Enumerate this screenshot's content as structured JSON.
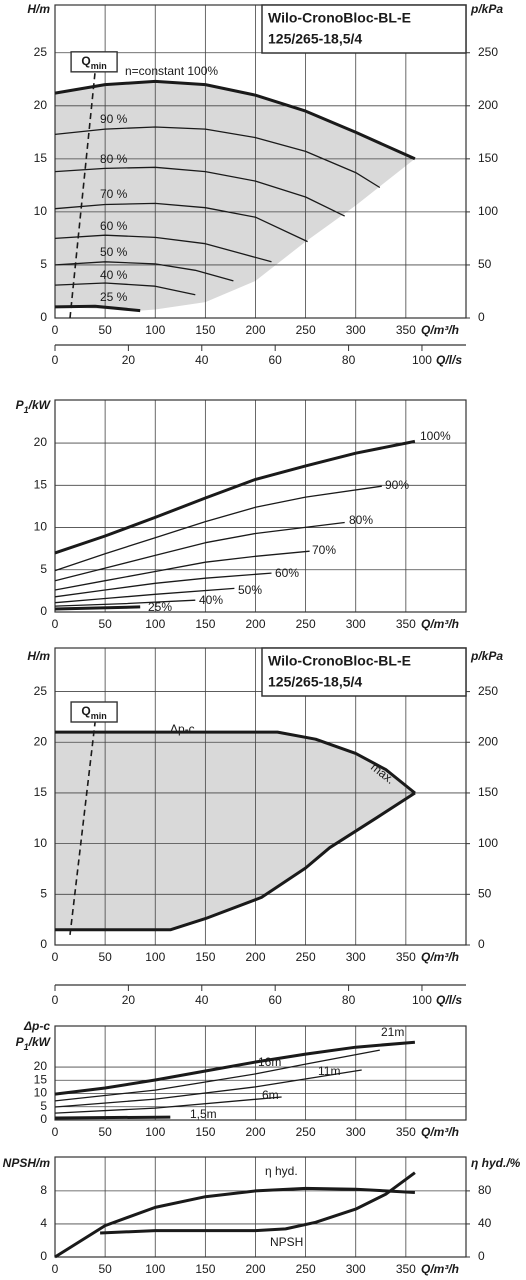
{
  "chart_data": [
    {
      "type": "line",
      "title": "Wilo-CronoBloc-BL-E",
      "subtitle": "125/265-18,5/4",
      "y_label": "H/m",
      "y2_label": "p/kPa",
      "x_label": "Q/m³/h",
      "x2_label": "Q/l/s",
      "xlim": [
        0,
        410
      ],
      "xticks": [
        0,
        50,
        100,
        150,
        200,
        250,
        300,
        350
      ],
      "ylim": [
        0,
        29.5
      ],
      "yticks": [
        0,
        5,
        10,
        15,
        20,
        25
      ],
      "y2lim": [
        0,
        295
      ],
      "y2ticks": [
        0,
        50,
        100,
        150,
        200,
        250
      ],
      "x2lim": [
        0,
        112
      ],
      "x2ticks": [
        0,
        20,
        40,
        60,
        80,
        100
      ],
      "grid": true,
      "color": "#1a1a1a",
      "region": {
        "color": "#d9d9d9",
        "x": [
          0,
          50,
          100,
          150,
          200,
          250,
          300,
          359,
          300,
          250,
          200,
          150,
          100,
          85,
          0
        ],
        "values": [
          21.2,
          22.0,
          22.3,
          22.0,
          21.0,
          19.5,
          17.5,
          15.0,
          10.6,
          7.2,
          3.5,
          1.5,
          0.8,
          0.7,
          1.05
        ]
      },
      "qmin": {
        "label": {
          "main": "Q",
          "sub": "min"
        },
        "x": [
          15,
          40
        ],
        "values": [
          0,
          23.2
        ]
      },
      "annotations": [
        "n=constant 100%"
      ],
      "series": [
        {
          "x": [
            0,
            50,
            100,
            150,
            200,
            250,
            300,
            359
          ],
          "values": [
            21.2,
            22.0,
            22.3,
            22.0,
            21.0,
            19.5,
            17.5,
            15.0
          ]
        },
        {
          "name": "90 %",
          "x": [
            0,
            50,
            100,
            150,
            200,
            250,
            300,
            324
          ],
          "values": [
            17.3,
            17.8,
            18.0,
            17.8,
            17.0,
            15.7,
            13.7,
            12.3
          ]
        },
        {
          "name": "80 %",
          "x": [
            0,
            50,
            100,
            150,
            200,
            250,
            289
          ],
          "values": [
            13.8,
            14.1,
            14.2,
            13.8,
            12.9,
            11.4,
            9.6
          ]
        },
        {
          "name": "70 %",
          "x": [
            0,
            50,
            100,
            150,
            200,
            252
          ],
          "values": [
            10.3,
            10.7,
            10.8,
            10.4,
            9.5,
            7.2
          ]
        },
        {
          "name": "60 %",
          "x": [
            0,
            50,
            100,
            150,
            216
          ],
          "values": [
            7.5,
            7.8,
            7.6,
            7.0,
            5.3
          ]
        },
        {
          "name": "50 %",
          "x": [
            0,
            50,
            100,
            140,
            178
          ],
          "values": [
            5.0,
            5.3,
            5.1,
            4.5,
            3.5
          ]
        },
        {
          "name": "40 %",
          "x": [
            0,
            50,
            100,
            140
          ],
          "values": [
            3.1,
            3.3,
            3.0,
            2.2
          ]
        },
        {
          "name": "25 %",
          "x": [
            0,
            40,
            85
          ],
          "values": [
            1.05,
            1.1,
            0.7
          ]
        }
      ]
    },
    {
      "type": "line",
      "y_label": {
        "main": "P",
        "sub": "1",
        "rest": "/kW"
      },
      "x_label": "Q/m³/h",
      "xlim": [
        0,
        410
      ],
      "xticks": [
        0,
        50,
        100,
        150,
        200,
        250,
        300,
        350
      ],
      "ylim": [
        0,
        25.1
      ],
      "yticks": [
        0,
        5,
        10,
        15,
        20
      ],
      "grid": true,
      "color": "#1a1a1a",
      "series": [
        {
          "name": "100%",
          "x": [
            0,
            50,
            100,
            150,
            200,
            250,
            300,
            359
          ],
          "values": [
            7.0,
            9.0,
            11.2,
            13.5,
            15.7,
            17.3,
            18.8,
            20.2
          ]
        },
        {
          "name": "90%",
          "x": [
            0,
            50,
            100,
            150,
            200,
            250,
            326
          ],
          "values": [
            4.9,
            6.9,
            8.8,
            10.7,
            12.4,
            13.6,
            14.9
          ]
        },
        {
          "name": "80%",
          "x": [
            0,
            50,
            100,
            150,
            200,
            289
          ],
          "values": [
            3.7,
            5.2,
            6.7,
            8.2,
            9.3,
            10.6
          ]
        },
        {
          "name": "70%",
          "x": [
            0,
            50,
            100,
            150,
            200,
            254
          ],
          "values": [
            2.6,
            3.7,
            4.8,
            5.9,
            6.6,
            7.2
          ]
        },
        {
          "name": "60%",
          "x": [
            0,
            50,
            100,
            150,
            216
          ],
          "values": [
            1.8,
            2.6,
            3.4,
            4.0,
            4.6
          ]
        },
        {
          "name": "50%",
          "x": [
            0,
            50,
            100,
            179
          ],
          "values": [
            1.1,
            1.6,
            2.1,
            2.8
          ]
        },
        {
          "name": "40%",
          "x": [
            0,
            70,
            140
          ],
          "values": [
            0.7,
            1.0,
            1.4
          ]
        },
        {
          "name": "25%",
          "x": [
            0,
            85
          ],
          "values": [
            0.35,
            0.6
          ]
        }
      ]
    },
    {
      "type": "line",
      "title": "Wilo-CronoBloc-BL-E",
      "subtitle": "125/265-18,5/4",
      "y_label": "H/m",
      "y2_label": "p/kPa",
      "x_label": "Q/m³/h",
      "x2_label": "Q/l/s",
      "xlim": [
        0,
        410
      ],
      "xticks": [
        0,
        50,
        100,
        150,
        200,
        250,
        300,
        350
      ],
      "ylim": [
        0,
        29.3
      ],
      "yticks": [
        0,
        5,
        10,
        15,
        20,
        25
      ],
      "y2lim": [
        0,
        293
      ],
      "y2ticks": [
        0,
        50,
        100,
        150,
        200,
        250
      ],
      "x2lim": [
        0,
        112
      ],
      "x2ticks": [
        0,
        20,
        40,
        60,
        80,
        100
      ],
      "grid": true,
      "color": "#1a1a1a",
      "fill_between": "#d9d9d9",
      "qmin": {
        "label": {
          "main": "Q",
          "sub": "min"
        },
        "x": [
          15,
          40
        ],
        "values": [
          1.0,
          22.0
        ]
      },
      "annotations": [
        "max."
      ],
      "series": [
        {
          "name": "Δp-c",
          "x": [
            0,
            222,
            260,
            300,
            330,
            359
          ],
          "values": [
            21.0,
            21.0,
            20.3,
            18.9,
            17.3,
            15.0
          ]
        },
        {
          "x": [
            0,
            115,
            150,
            206,
            250,
            274,
            320,
            359
          ],
          "values": [
            1.5,
            1.5,
            2.6,
            4.7,
            7.6,
            9.6,
            12.5,
            15.0
          ]
        }
      ]
    },
    {
      "type": "line",
      "y_label_top": "Δp-c",
      "y_label": {
        "main": "P",
        "sub": "1",
        "rest": "/kW"
      },
      "x_label": "Q/m³/h",
      "xlim": [
        0,
        410
      ],
      "xticks": [
        0,
        50,
        100,
        150,
        200,
        250,
        300,
        350
      ],
      "ylim": [
        0,
        35.5
      ],
      "yticks": [
        0,
        5,
        10,
        15,
        20
      ],
      "grid": true,
      "color": "#1a1a1a",
      "series": [
        {
          "name": "21m",
          "x": [
            0,
            50,
            100,
            150,
            200,
            250,
            300,
            359
          ],
          "values": [
            9.8,
            12.1,
            15.1,
            18.5,
            21.9,
            24.9,
            27.5,
            29.4
          ]
        },
        {
          "name": "16m",
          "x": [
            0,
            100,
            200,
            250,
            324
          ],
          "values": [
            7.2,
            11.3,
            17.4,
            21.1,
            26.4
          ]
        },
        {
          "name": "11m",
          "x": [
            0,
            100,
            200,
            306
          ],
          "values": [
            4.9,
            7.9,
            12.5,
            18.9
          ]
        },
        {
          "name": "6m",
          "x": [
            0,
            100,
            226
          ],
          "values": [
            2.6,
            4.5,
            8.7
          ]
        },
        {
          "name": "1,5m",
          "x": [
            0,
            115
          ],
          "values": [
            0.75,
            1.1
          ]
        }
      ]
    },
    {
      "type": "line",
      "y_label": "NPSH/m",
      "y2_label": "η hyd./%",
      "x_label": "Q/m³/h",
      "xlim": [
        0,
        410
      ],
      "xticks": [
        0,
        50,
        100,
        150,
        200,
        250,
        300,
        350
      ],
      "ylim": [
        0,
        12.1
      ],
      "yticks": [
        0,
        4,
        8
      ],
      "y2lim": [
        0,
        121
      ],
      "y2ticks": [
        0,
        40,
        80
      ],
      "grid": true,
      "color": "#1a1a1a",
      "series": [
        {
          "name": "η hyd.",
          "axis": "y2",
          "x": [
            0,
            50,
            100,
            150,
            200,
            250,
            300,
            359
          ],
          "values": [
            0,
            38,
            60,
            73,
            80,
            83,
            82,
            78
          ]
        },
        {
          "name": "NPSH",
          "x": [
            45,
            100,
            150,
            200,
            230,
            260,
            300,
            330,
            359
          ],
          "values": [
            2.9,
            3.2,
            3.2,
            3.2,
            3.4,
            4.2,
            5.8,
            7.6,
            10.2
          ]
        }
      ]
    }
  ]
}
